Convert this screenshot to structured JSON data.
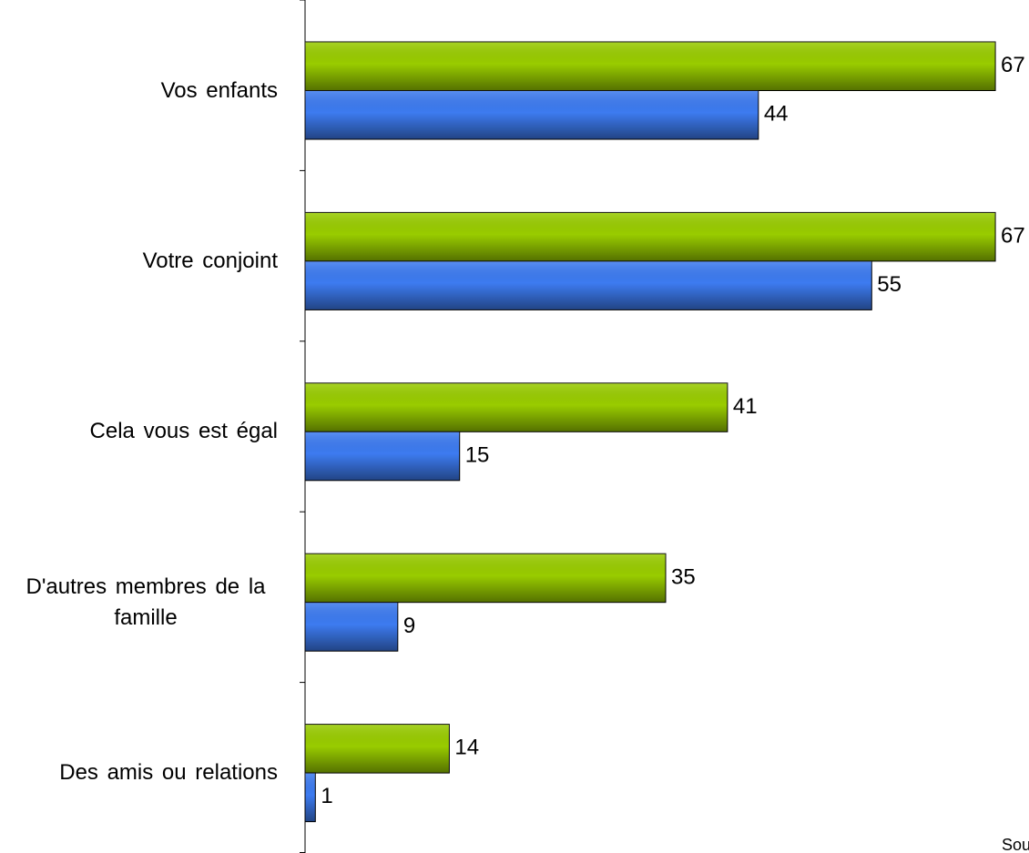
{
  "chart_data": {
    "type": "barh",
    "categories": [
      "Vos enfants",
      "Votre conjoint",
      "Cela vous est égal",
      "D'autres membres de la famille",
      "Des amis ou relations"
    ],
    "series": [
      {
        "color": "#99cc00",
        "values": [
          67,
          67,
          41,
          35,
          14
        ]
      },
      {
        "color": "#3d7bf0",
        "values": [
          44,
          55,
          15,
          9,
          1
        ]
      }
    ],
    "xlim": [
      0,
      70
    ],
    "annotation": "Sou"
  }
}
